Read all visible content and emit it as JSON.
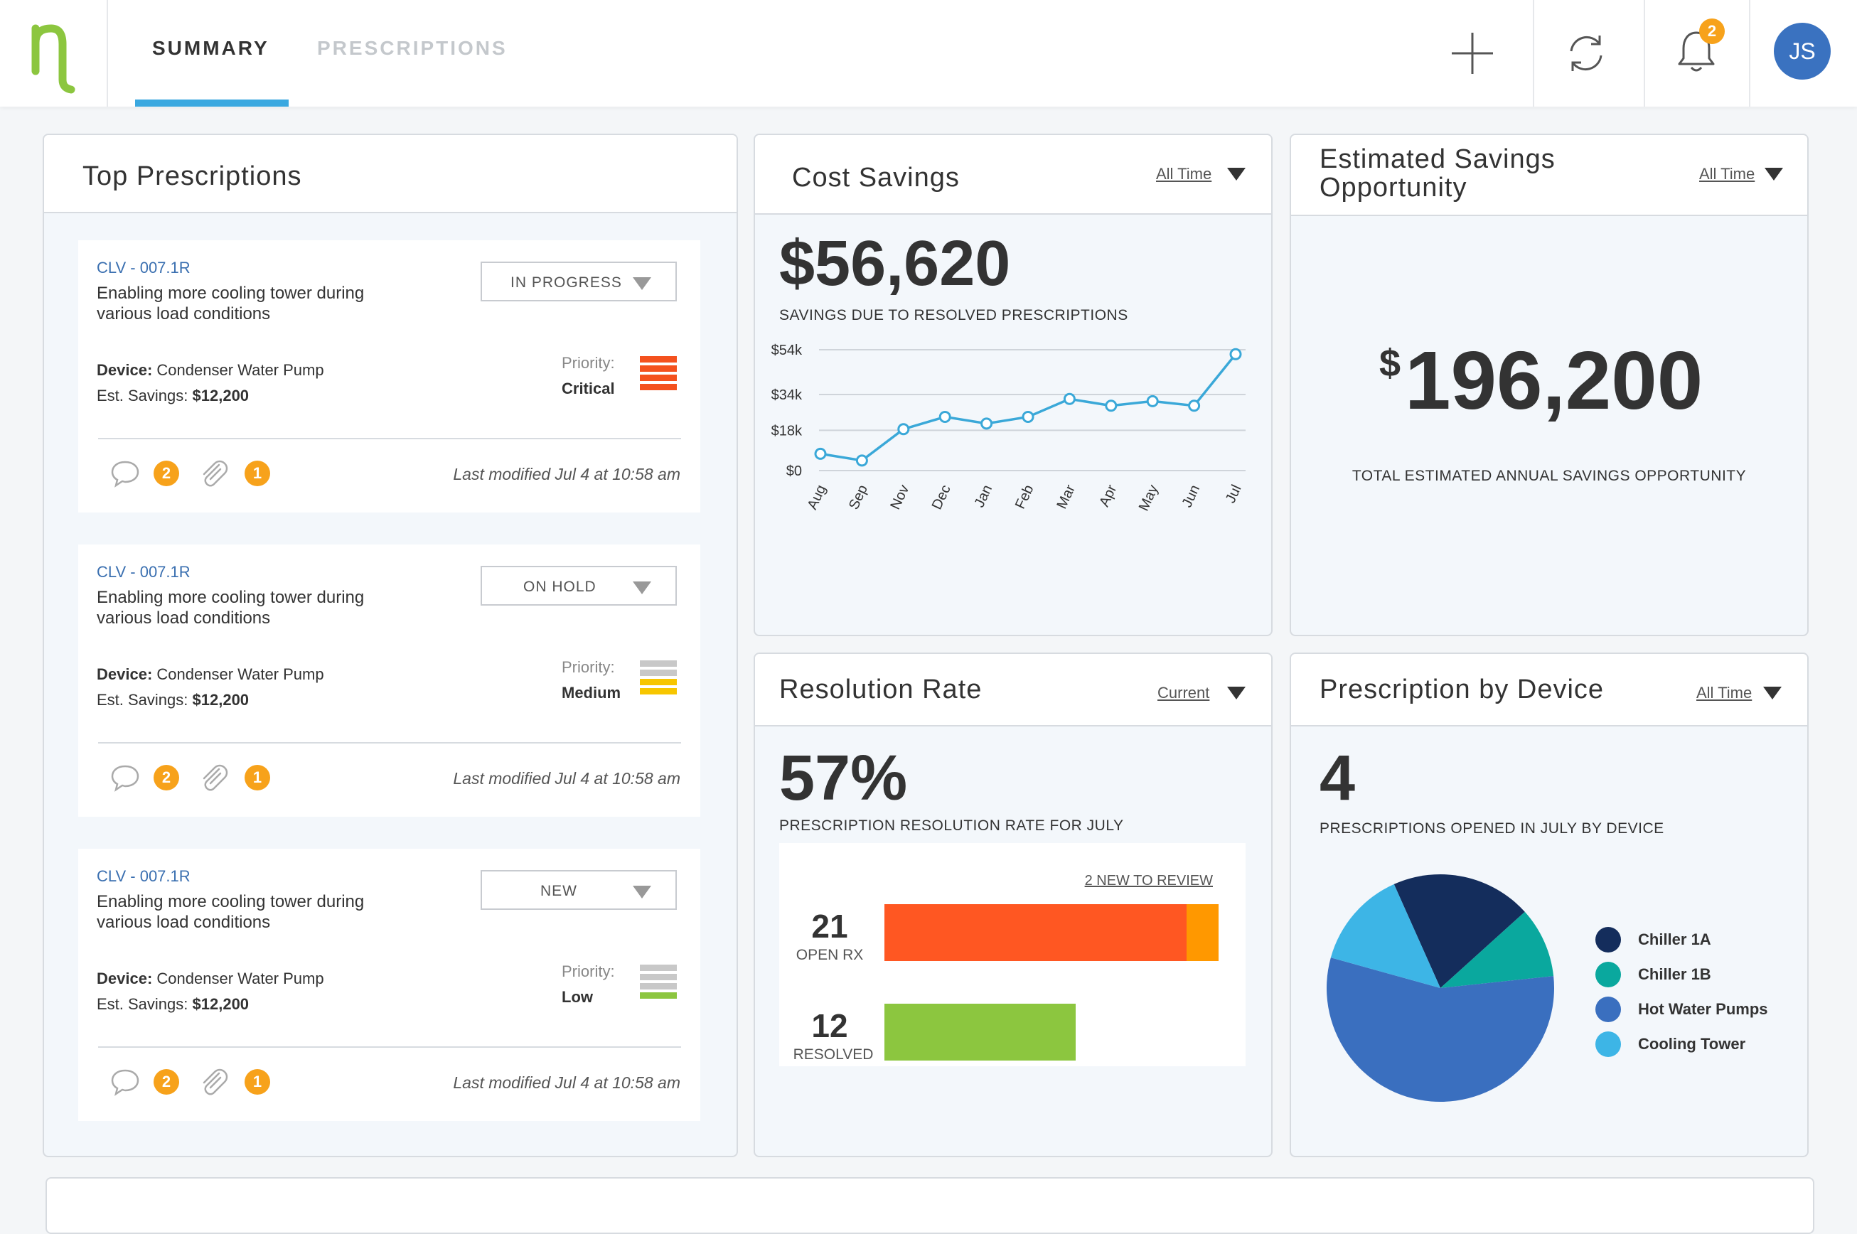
{
  "header": {
    "logo_glyph": "η",
    "tabs": [
      {
        "label": "SUMMARY",
        "active": true
      },
      {
        "label": "PRESCRIPTIONS",
        "active": false
      }
    ],
    "notification_count": "2",
    "user_initials": "JS",
    "icons": [
      "plus-icon",
      "refresh-icon",
      "bell-icon"
    ]
  },
  "top_prescriptions": {
    "title": "Top Prescriptions",
    "cards": [
      {
        "code": "CLV - 007.1R",
        "description": "Enabling more cooling tower during various load conditions",
        "status": "IN PROGRESS",
        "device_label": "Device:",
        "device": "Condenser Water Pump",
        "savings_label": "Est. Savings:",
        "savings": "$12,200",
        "priority_label": "Priority:",
        "priority": "Critical",
        "comments": "2",
        "attachments": "1",
        "modified": "Last modified Jul 4 at 10:58 am"
      },
      {
        "code": "CLV - 007.1R",
        "description": "Enabling more cooling tower during various load conditions",
        "status": "ON HOLD",
        "device_label": "Device:",
        "device": "Condenser Water Pump",
        "savings_label": "Est. Savings:",
        "savings": "$12,200",
        "priority_label": "Priority:",
        "priority": "Medium",
        "comments": "2",
        "attachments": "1",
        "modified": "Last modified Jul 4 at 10:58 am"
      },
      {
        "code": "CLV - 007.1R",
        "description": "Enabling more cooling tower during various load conditions",
        "status": "NEW",
        "device_label": "Device:",
        "device": "Condenser Water Pump",
        "savings_label": "Est. Savings:",
        "savings": "$12,200",
        "priority_label": "Priority:",
        "priority": "Low",
        "comments": "2",
        "attachments": "1",
        "modified": "Last modified Jul 4 at 10:58 am"
      }
    ]
  },
  "priority_colors": {
    "critical": "#f4511e",
    "medium": "#f7c600",
    "low": "#8cc63f",
    "inactive": "#c8c8c8"
  },
  "cost_savings": {
    "title": "Cost Savings",
    "filter": "All Time",
    "amount": "$56,620",
    "caption": "SAVINGS DUE TO RESOLVED PRESCRIPTIONS",
    "chart_data": {
      "type": "line",
      "x": [
        "Aug",
        "Sep",
        "Nov",
        "Dec",
        "Jan",
        "Feb",
        "Mar",
        "Apr",
        "May",
        "Jun",
        "Jul"
      ],
      "values": [
        7.5,
        4.5,
        18.5,
        24,
        21,
        24,
        32,
        29,
        31,
        29,
        52
      ],
      "yticks": [
        "$0",
        "$18k",
        "$34k",
        "$54k"
      ],
      "ytick_values": [
        0,
        18,
        34,
        54
      ],
      "ylim": [
        0,
        54
      ],
      "grid": true,
      "color": "#3aa8d8"
    }
  },
  "estimated_savings": {
    "title": "Estimated Savings Opportunity",
    "filter": "All Time",
    "currency": "$",
    "amount": "196,200",
    "caption": "TOTAL ESTIMATED ANNUAL SAVINGS OPPORTUNITY"
  },
  "resolution_rate": {
    "title": "Resolution Rate",
    "filter": "Current",
    "rate": "57%",
    "caption": "PRESCRIPTION RESOLUTION RATE FOR JULY",
    "review_link": "2 NEW TO REVIEW",
    "chart_data": {
      "type": "bar",
      "orientation": "horizontal",
      "categories": [
        "OPEN RX",
        "RESOLVED"
      ],
      "values": [
        21,
        12
      ],
      "open_breakdown": [
        {
          "value": 19,
          "color": "#ff5722"
        },
        {
          "value": 2,
          "color": "#ff9800"
        }
      ],
      "resolved_color": "#8cc63f",
      "xlim": [
        0,
        21
      ]
    }
  },
  "prescription_by_device": {
    "title": "Prescription by Device",
    "filter": "All Time",
    "count": "4",
    "caption": "PRESCRIPTIONS OPENED IN JULY BY DEVICE",
    "chart_data": {
      "type": "pie",
      "categories": [
        "Chiller 1A",
        "Chiller 1B",
        "Hot Water Pumps",
        "Cooling Tower"
      ],
      "values": [
        20,
        10,
        56,
        14
      ],
      "colors": [
        "#142d5c",
        "#0aa89e",
        "#3a6fbf",
        "#3db5e6"
      ]
    }
  }
}
